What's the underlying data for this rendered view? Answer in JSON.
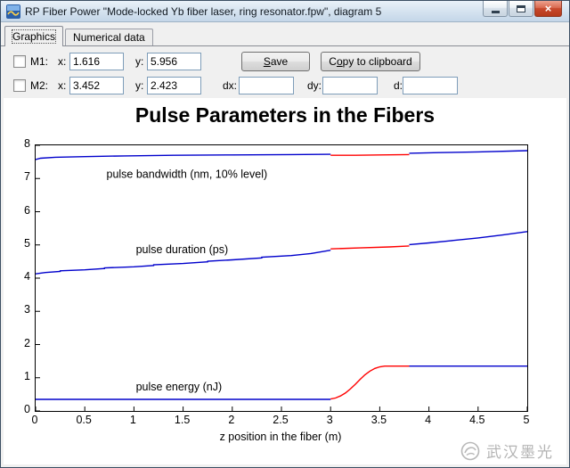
{
  "window": {
    "title": "RP Fiber Power \"Mode-locked Yb fiber laser, ring resonator.fpw\", diagram 5",
    "close_glyph": "×"
  },
  "tabs": [
    {
      "label": "Graphics",
      "active": true
    },
    {
      "label": "Numerical data",
      "active": false
    }
  ],
  "toolbar": {
    "m1": {
      "label": "M1:",
      "x_label": "x:",
      "x_value": "1.616",
      "y_label": "y:",
      "y_value": "5.956",
      "checked": false
    },
    "m2": {
      "label": "M2:",
      "x_label": "x:",
      "x_value": "3.452",
      "y_label": "y:",
      "y_value": "2.423",
      "checked": false
    },
    "save_button": {
      "pre": "",
      "accel": "S",
      "post": "ave"
    },
    "copy_button": {
      "pre": "C",
      "accel": "o",
      "post": "py to clipboard"
    },
    "dx_label": "dx:",
    "dx_value": "",
    "dy_label": "dy:",
    "dy_value": "",
    "d_label": "d:",
    "d_value": ""
  },
  "chart_data": {
    "type": "line",
    "title": "Pulse Parameters in the Fibers",
    "xlabel": "z position in the fiber (m)",
    "ylabel": "",
    "xlim": [
      0,
      5
    ],
    "ylim": [
      0,
      8
    ],
    "grid": false,
    "legend_position": "none",
    "xticks": [
      0,
      0.5,
      1,
      1.5,
      2,
      2.5,
      3,
      3.5,
      4,
      4.5,
      5
    ],
    "xtick_labels": [
      "0",
      "0.5",
      "1",
      "1.5",
      "2",
      "2.5",
      "3",
      "3.5",
      "4",
      "4.5",
      "5"
    ],
    "yticks": [
      0,
      1,
      2,
      3,
      4,
      5,
      6,
      7,
      8
    ],
    "colors": {
      "passive": "#0000cc",
      "active": "#ff0000"
    },
    "series": [
      {
        "name": "pulse bandwidth (nm, 10% level)",
        "segments": [
          {
            "role": "passive",
            "points": [
              [
                0,
                7.57
              ],
              [
                0.05,
                7.61
              ],
              [
                0.2,
                7.64
              ],
              [
                0.5,
                7.66
              ],
              [
                0.9,
                7.68
              ],
              [
                1.4,
                7.7
              ],
              [
                2.0,
                7.71
              ],
              [
                2.6,
                7.72
              ],
              [
                3.0,
                7.73
              ]
            ]
          },
          {
            "role": "active",
            "points": [
              [
                3.0,
                7.7
              ],
              [
                3.25,
                7.7
              ],
              [
                3.5,
                7.71
              ],
              [
                3.8,
                7.72
              ]
            ]
          },
          {
            "role": "passive",
            "points": [
              [
                3.8,
                7.76
              ],
              [
                4.1,
                7.78
              ],
              [
                4.5,
                7.8
              ],
              [
                5.0,
                7.84
              ]
            ]
          }
        ]
      },
      {
        "name": "pulse duration (ps)",
        "segments": [
          {
            "role": "passive",
            "points": [
              [
                0,
                4.13
              ],
              [
                0.1,
                4.17
              ],
              [
                0.25,
                4.2
              ],
              [
                0.25,
                4.22
              ],
              [
                0.5,
                4.25
              ],
              [
                0.7,
                4.29
              ],
              [
                0.7,
                4.31
              ],
              [
                1.0,
                4.34
              ],
              [
                1.2,
                4.38
              ],
              [
                1.2,
                4.4
              ],
              [
                1.5,
                4.44
              ],
              [
                1.75,
                4.49
              ],
              [
                1.75,
                4.51
              ],
              [
                2.0,
                4.55
              ],
              [
                2.3,
                4.61
              ],
              [
                2.3,
                4.63
              ],
              [
                2.6,
                4.68
              ],
              [
                2.8,
                4.74
              ],
              [
                3.0,
                4.84
              ]
            ]
          },
          {
            "role": "active",
            "points": [
              [
                3.0,
                4.88
              ],
              [
                3.3,
                4.91
              ],
              [
                3.6,
                4.94
              ],
              [
                3.8,
                4.97
              ]
            ]
          },
          {
            "role": "passive",
            "points": [
              [
                3.8,
                5.01
              ],
              [
                4.0,
                5.06
              ],
              [
                4.2,
                5.12
              ],
              [
                4.5,
                5.21
              ],
              [
                4.75,
                5.3
              ],
              [
                5.0,
                5.4
              ]
            ]
          }
        ]
      },
      {
        "name": "pulse energy (nJ)",
        "segments": [
          {
            "role": "passive",
            "points": [
              [
                0,
                0.35
              ],
              [
                3.0,
                0.35
              ]
            ]
          },
          {
            "role": "active",
            "points": [
              [
                3.0,
                0.36
              ],
              [
                3.05,
                0.39
              ],
              [
                3.1,
                0.45
              ],
              [
                3.15,
                0.54
              ],
              [
                3.2,
                0.66
              ],
              [
                3.25,
                0.8
              ],
              [
                3.3,
                0.95
              ],
              [
                3.35,
                1.09
              ],
              [
                3.4,
                1.2
              ],
              [
                3.45,
                1.28
              ],
              [
                3.5,
                1.33
              ],
              [
                3.55,
                1.35
              ],
              [
                3.8,
                1.35
              ]
            ]
          },
          {
            "role": "passive",
            "points": [
              [
                3.8,
                1.35
              ],
              [
                5.0,
                1.35
              ]
            ]
          }
        ]
      }
    ],
    "annotations": [
      {
        "text": "pulse bandwidth (nm, 10% level)",
        "x": 0.72,
        "y": 7.02
      },
      {
        "text": "pulse duration (ps)",
        "x": 1.02,
        "y": 4.75
      },
      {
        "text": "pulse energy (nJ)",
        "x": 1.02,
        "y": 0.62
      }
    ]
  },
  "watermark": {
    "text": "武汉墨光"
  }
}
